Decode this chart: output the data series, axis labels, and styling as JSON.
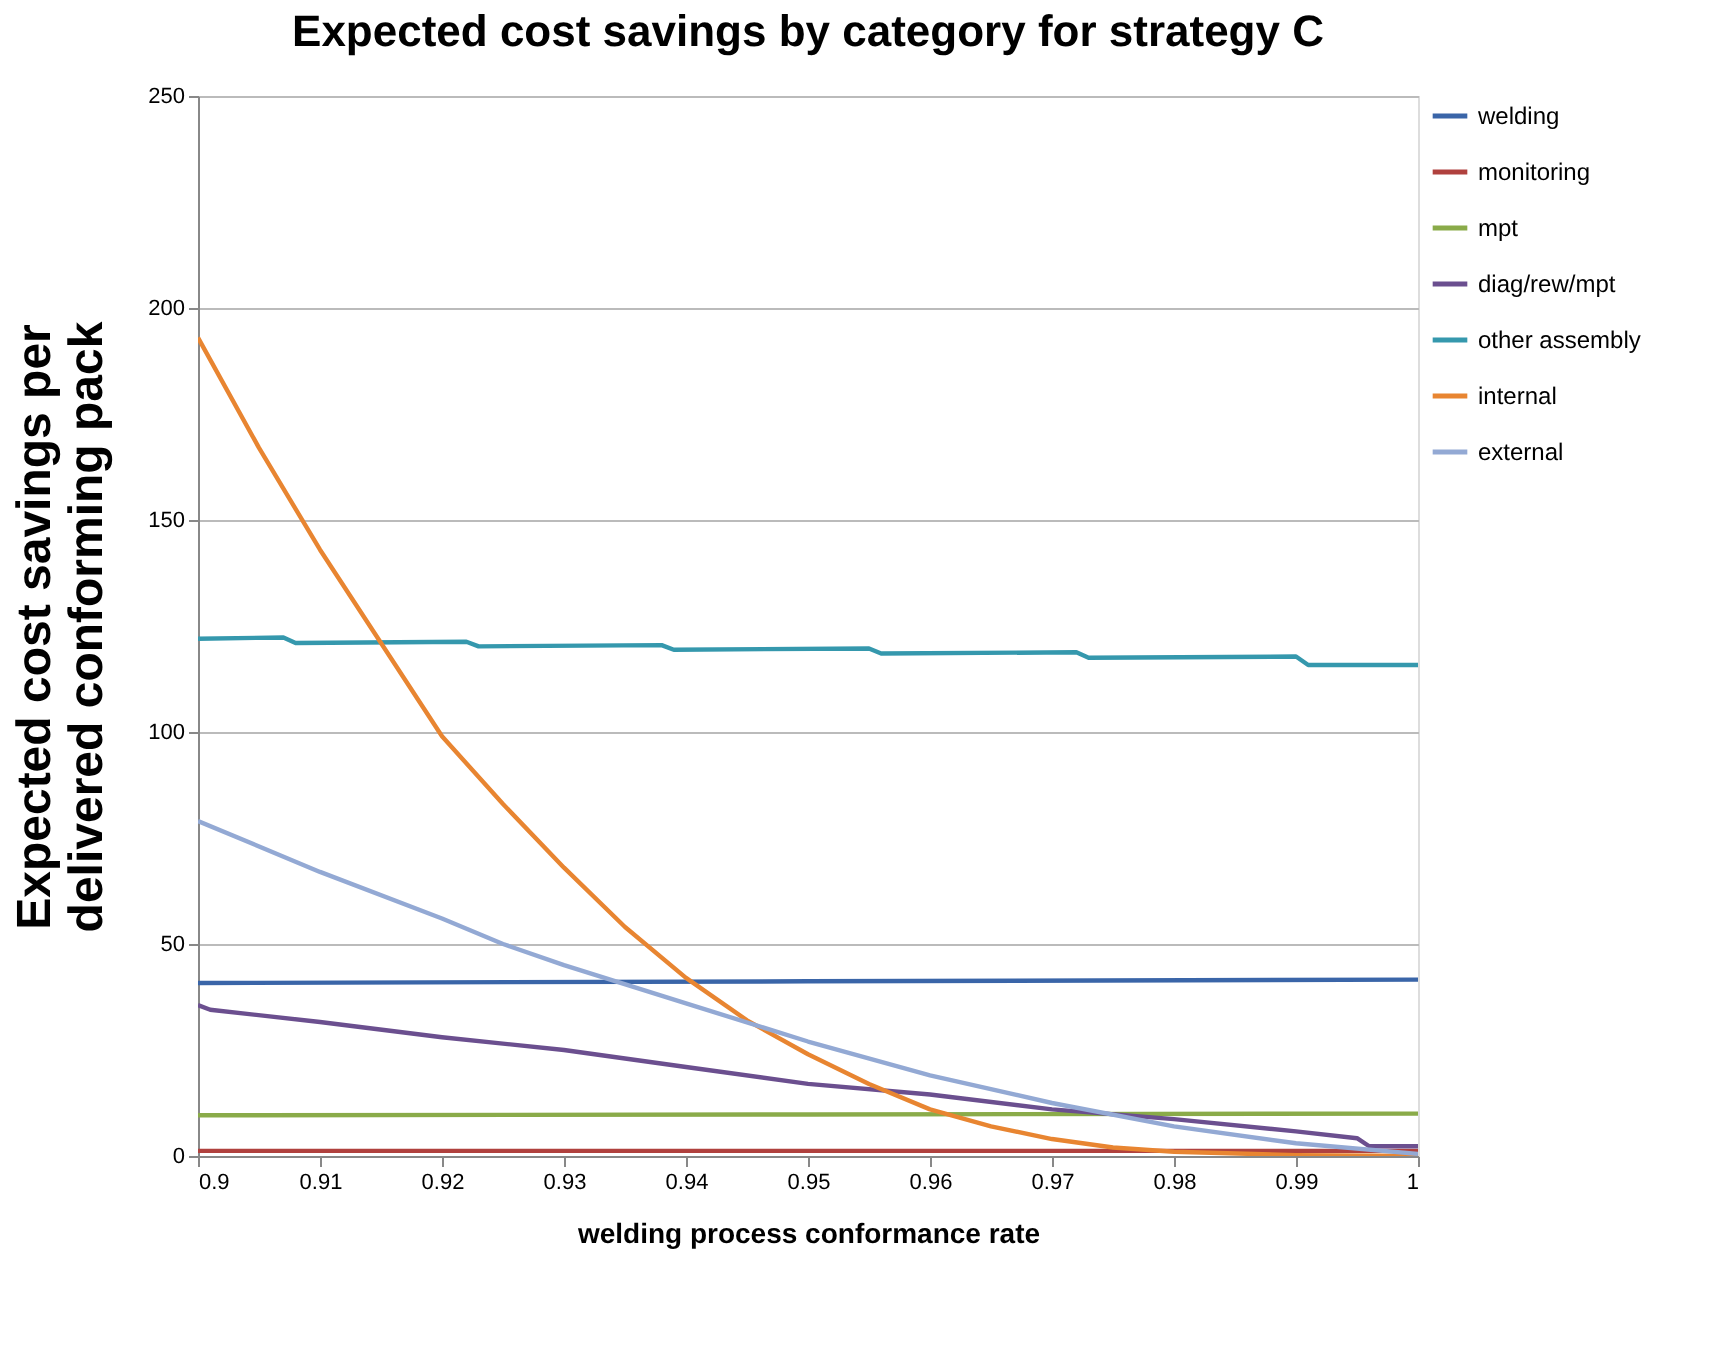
{
  "chart_data": {
    "type": "line",
    "title": "Expected cost savings by category for strategy C",
    "xlabel": "welding process conformance rate",
    "ylabel": "Expected cost savings per delivered conforming pack",
    "xlim": [
      0.9,
      1.0
    ],
    "xticks": [
      0.9,
      0.91,
      0.92,
      0.93,
      0.94,
      0.95,
      0.96,
      0.97,
      0.98,
      0.99,
      1
    ],
    "ylim": [
      0,
      250
    ],
    "yticks": [
      0,
      50,
      100,
      150,
      200,
      250
    ],
    "grid": "y",
    "legend": "right",
    "marker": "none",
    "line_style": "solid",
    "series": [
      {
        "name": "welding",
        "color": "#3a65a8",
        "x": [
          0.9,
          0.95,
          1.0
        ],
        "values": [
          40.8,
          41.2,
          41.6
        ]
      },
      {
        "name": "monitoring",
        "color": "#b0413e",
        "x": [
          0.9,
          0.95,
          1.0
        ],
        "values": [
          1.2,
          1.2,
          1.2
        ]
      },
      {
        "name": "mpt",
        "color": "#8aab49",
        "x": [
          0.9,
          0.95,
          1.0
        ],
        "values": [
          9.6,
          9.8,
          10.0
        ]
      },
      {
        "name": "diag/rew/mpt",
        "color": "#6b4f8f",
        "x": [
          0.9,
          0.901,
          0.91,
          0.92,
          0.93,
          0.94,
          0.95,
          0.96,
          0.97,
          0.98,
          0.99,
          0.995,
          0.996,
          1.0
        ],
        "values": [
          35.6,
          34.5,
          31.6,
          28,
          25,
          21,
          17,
          14.5,
          11,
          8.7,
          5.8,
          4.2,
          2.3,
          2.3
        ]
      },
      {
        "name": "other assembly",
        "color": "#3598ad",
        "x": [
          0.9,
          0.907,
          0.908,
          0.922,
          0.923,
          0.938,
          0.939,
          0.955,
          0.956,
          0.972,
          0.973,
          0.99,
          0.991,
          1.0
        ],
        "values": [
          122.0,
          122.3,
          121.0,
          121.3,
          120.2,
          120.5,
          119.4,
          119.7,
          118.5,
          118.8,
          117.5,
          117.8,
          115.8,
          115.8
        ]
      },
      {
        "name": "internal",
        "color": "#e88531",
        "x": [
          0.9,
          0.905,
          0.91,
          0.915,
          0.92,
          0.925,
          0.93,
          0.935,
          0.94,
          0.945,
          0.95,
          0.955,
          0.96,
          0.965,
          0.97,
          0.975,
          0.98,
          0.99,
          1.0
        ],
        "values": [
          193,
          167,
          143,
          121,
          99,
          83,
          68,
          54,
          42,
          32,
          24,
          17,
          11,
          7,
          4,
          2,
          1,
          0.2,
          0
        ]
      },
      {
        "name": "external",
        "color": "#93a9d4",
        "x": [
          0.9,
          0.91,
          0.92,
          0.925,
          0.93,
          0.94,
          0.95,
          0.96,
          0.97,
          0.98,
          0.99,
          1.0
        ],
        "values": [
          79,
          67,
          56,
          50,
          45,
          36,
          27,
          19,
          12.5,
          7,
          3,
          0.5
        ]
      }
    ]
  }
}
